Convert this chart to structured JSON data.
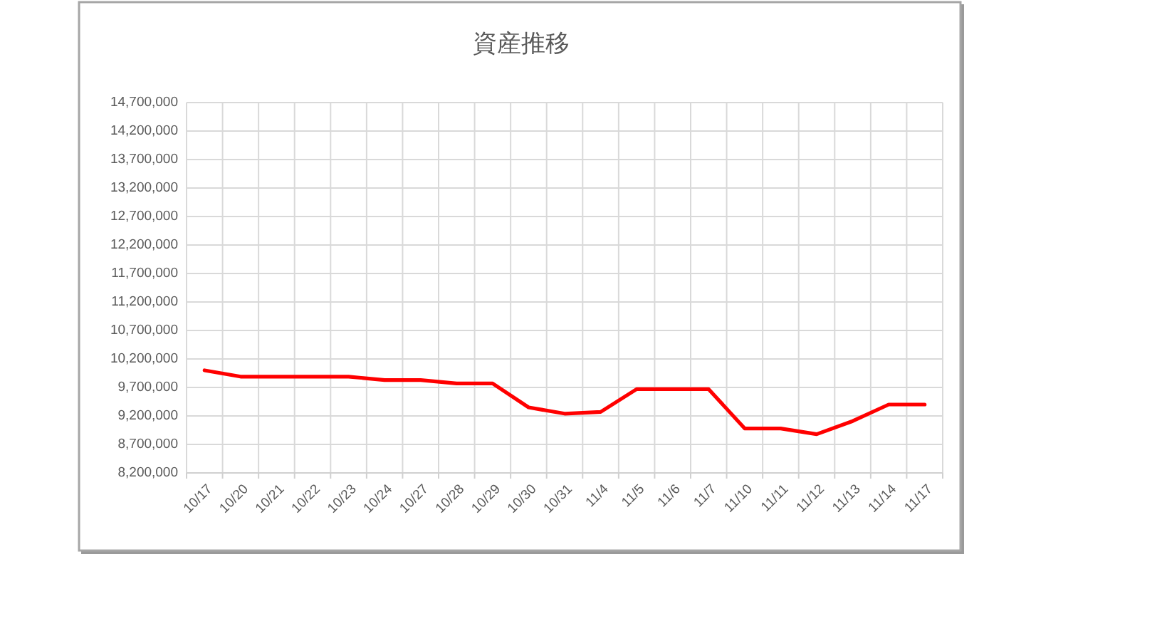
{
  "chart_data": {
    "type": "line",
    "title": "資産推移",
    "categories": [
      "10/17",
      "10/20",
      "10/21",
      "10/22",
      "10/23",
      "10/24",
      "10/27",
      "10/28",
      "10/29",
      "10/30",
      "10/31",
      "11/4",
      "11/5",
      "11/6",
      "11/7",
      "11/10",
      "11/11",
      "11/12",
      "11/13",
      "11/14",
      "11/17"
    ],
    "series": [
      {
        "color": "#ff0000",
        "values": [
          10000000,
          9890000,
          9890000,
          9890000,
          9890000,
          9830000,
          9830000,
          9770000,
          9770000,
          9350000,
          9240000,
          9270000,
          9670000,
          9670000,
          9670000,
          8980000,
          8980000,
          8880000,
          9110000,
          9400000,
          9400000
        ]
      }
    ],
    "ylim": [
      8200000,
      14700000
    ],
    "yticks": [
      {
        "value": 8200000,
        "label": "8,200,000"
      },
      {
        "value": 8700000,
        "label": "8,700,000"
      },
      {
        "value": 9200000,
        "label": "9,200,000"
      },
      {
        "value": 9700000,
        "label": "9,700,000"
      },
      {
        "value": 10200000,
        "label": "10,200,000"
      },
      {
        "value": 10700000,
        "label": "10,700,000"
      },
      {
        "value": 11200000,
        "label": "11,200,000"
      },
      {
        "value": 11700000,
        "label": "11,700,000"
      },
      {
        "value": 12200000,
        "label": "12,200,000"
      },
      {
        "value": 12700000,
        "label": "12,700,000"
      },
      {
        "value": 13200000,
        "label": "13,200,000"
      },
      {
        "value": 13700000,
        "label": "13,700,000"
      },
      {
        "value": 14200000,
        "label": "14,200,000"
      },
      {
        "value": 14700000,
        "label": "14,700,000"
      }
    ],
    "grid": true
  }
}
